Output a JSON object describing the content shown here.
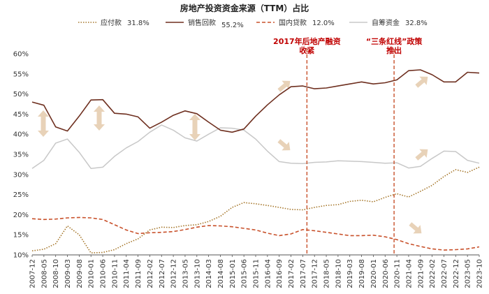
{
  "chart_data": {
    "type": "line",
    "title": "房地产投资资金来源（TTM）占比",
    "xlabel": "",
    "ylabel": "",
    "ylim": [
      10,
      60
    ],
    "yticks": [
      "10%",
      "15%",
      "20%",
      "25%",
      "30%",
      "35%",
      "40%",
      "45%",
      "50%",
      "55%",
      "60%"
    ],
    "ytick_values": [
      10,
      15,
      20,
      25,
      30,
      35,
      40,
      45,
      50,
      55,
      60
    ],
    "x_tick_labels": [
      "2007-12",
      "2008-05",
      "2008-10",
      "2009-03",
      "2009-08",
      "2010-01",
      "2010-06",
      "2010-11",
      "2011-04",
      "2011-09",
      "2012-02",
      "2012-07",
      "2012-12",
      "2013-05",
      "2013-10",
      "2014-03",
      "2014-08",
      "2015-01",
      "2015-06",
      "2015-11",
      "2016-04",
      "2016-09",
      "2017-02",
      "2017-07",
      "2017-12",
      "2018-05",
      "2018-10",
      "2019-03",
      "2019-08",
      "2020-01",
      "2020-06",
      "2020-11",
      "2021-04",
      "2021-09",
      "2022-02",
      "2022-07",
      "2022-12",
      "2023-05",
      "2023-10"
    ],
    "legend": [
      {
        "name": "应付款",
        "value_label": "31.8%",
        "color": "#a5762a",
        "dash": "dot"
      },
      {
        "name": "销售回款",
        "value_label": "55.2%",
        "color": "#6e2f1f",
        "dash": "solid"
      },
      {
        "name": "国内贷款",
        "value_label": "12.0%",
        "color": "#c8502a",
        "dash": "dash"
      },
      {
        "name": "自筹资金",
        "value_label": "32.8%",
        "color": "#c8c8c8",
        "dash": "solid"
      }
    ],
    "annotations": [
      {
        "lines": [
          "2017年后地产融资",
          "收紧"
        ],
        "x_index": 23
      },
      {
        "lines": [
          "“三条红线”政策",
          "推出"
        ],
        "x_index": 31
      }
    ],
    "series": [
      {
        "name": "应付款",
        "values": [
          11.0,
          11.4,
          12.8,
          17.2,
          15.0,
          10.5,
          10.6,
          11.3,
          12.8,
          14.0,
          16.2,
          16.9,
          16.8,
          17.3,
          17.5,
          18.3,
          19.6,
          21.8,
          23.0,
          22.7,
          22.3,
          21.8,
          21.3,
          21.2,
          21.8,
          22.3,
          22.5,
          23.3,
          23.6,
          23.2,
          24.3,
          25.2,
          24.4,
          25.8,
          27.3,
          29.5,
          31.2,
          30.5,
          31.8
        ]
      },
      {
        "name": "销售回款",
        "values": [
          48.0,
          47.2,
          41.8,
          40.8,
          44.5,
          48.5,
          48.6,
          45.2,
          45.0,
          44.3,
          41.5,
          43.0,
          44.7,
          45.8,
          45.1,
          43.0,
          41.0,
          40.5,
          41.3,
          44.5,
          47.3,
          49.8,
          51.8,
          52.0,
          51.3,
          51.5,
          52.0,
          52.5,
          53.0,
          52.5,
          52.8,
          53.5,
          55.8,
          56.0,
          54.8,
          53.0,
          53.0,
          55.4,
          55.2
        ]
      },
      {
        "name": "国内贷款",
        "values": [
          19.0,
          18.8,
          18.9,
          19.2,
          19.3,
          19.2,
          18.8,
          17.5,
          16.2,
          15.3,
          15.5,
          15.6,
          15.8,
          16.3,
          16.9,
          17.3,
          17.2,
          17.0,
          16.6,
          16.2,
          15.4,
          14.8,
          15.2,
          16.3,
          16.0,
          15.6,
          15.2,
          14.8,
          14.8,
          14.9,
          14.5,
          13.8,
          12.8,
          12.1,
          11.5,
          11.2,
          11.3,
          11.5,
          12.0
        ]
      },
      {
        "name": "自筹资金",
        "values": [
          31.5,
          33.5,
          37.8,
          38.8,
          35.5,
          31.5,
          31.8,
          34.5,
          36.6,
          38.2,
          40.5,
          42.3,
          41.0,
          39.1,
          38.3,
          40.0,
          41.6,
          41.5,
          41.0,
          38.8,
          35.8,
          33.2,
          32.8,
          32.7,
          33.0,
          33.1,
          33.4,
          33.3,
          33.2,
          33.0,
          32.8,
          32.9,
          31.6,
          32.0,
          34.0,
          35.8,
          35.7,
          33.5,
          32.8
        ]
      }
    ]
  }
}
